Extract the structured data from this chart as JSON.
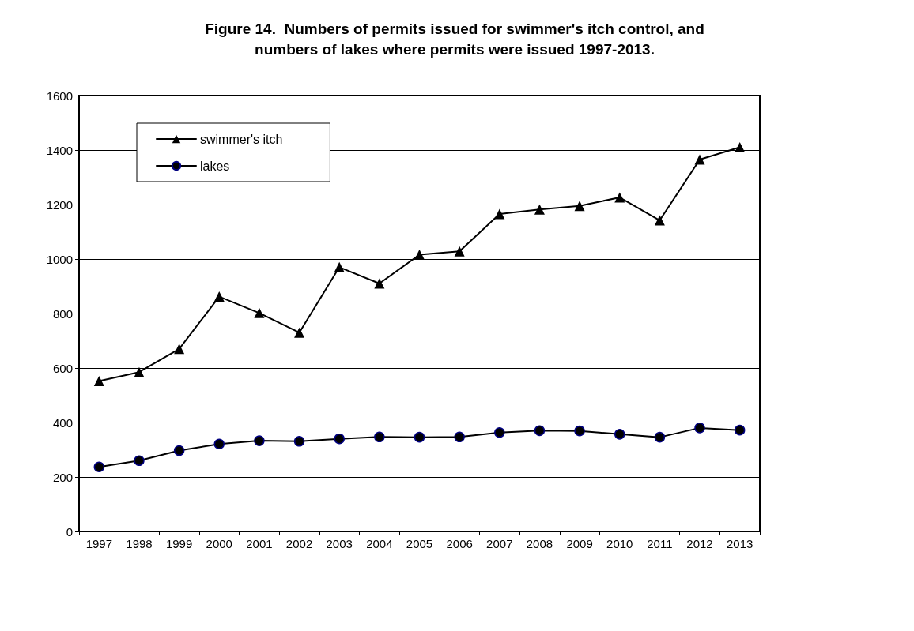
{
  "chart_data": {
    "type": "line",
    "title": "Figure 14.  Numbers of permits issued for swimmer's itch control, and\nnumbers of lakes where permits were issued 1997-2013.",
    "categories": [
      "1997",
      "1998",
      "1999",
      "2000",
      "2001",
      "2002",
      "2003",
      "2004",
      "2005",
      "2006",
      "2007",
      "2008",
      "2009",
      "2010",
      "2011",
      "2012",
      "2013"
    ],
    "series": [
      {
        "name": "swimmer's itch",
        "color": "#000000",
        "marker": "triangle",
        "values": [
          552,
          585,
          670,
          862,
          802,
          730,
          970,
          910,
          1016,
          1028,
          1165,
          1182,
          1195,
          1226,
          1142,
          1365,
          1410
        ]
      },
      {
        "name": "lakes",
        "color": "#000000",
        "marker": "circle",
        "values": [
          237,
          260,
          297,
          321,
          333,
          331,
          340,
          347,
          346,
          347,
          363,
          370,
          369,
          357,
          346,
          380,
          372
        ]
      }
    ],
    "ylim": [
      0,
      1600
    ],
    "yticks": [
      0,
      200,
      400,
      600,
      800,
      1000,
      1200,
      1400,
      1600
    ],
    "grid": "y",
    "legend": "top left",
    "line_style": "solid"
  }
}
